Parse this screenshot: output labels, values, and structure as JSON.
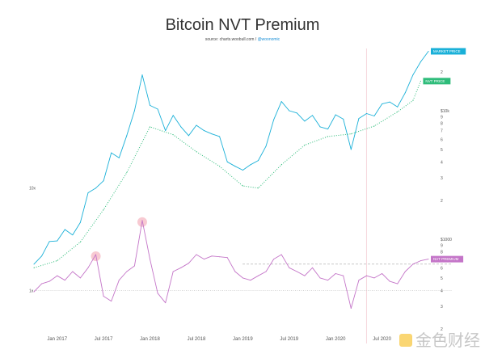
{
  "chart_data": {
    "type": "line",
    "title": "Bitcoin NVT Premium",
    "subtitle": {
      "source": "source: charts.woobull.com / ",
      "handle": "@woonomic"
    },
    "x_ticks": [
      "Jan 2017",
      "Jul 2017",
      "Jan 2018",
      "Jul 2018",
      "Jan 2019",
      "Jul 2019",
      "Jan 2020",
      "Jul 2020"
    ],
    "x_tick_dates": [
      "2017-01",
      "2017-07",
      "2018-01",
      "2018-07",
      "2019-01",
      "2019-07",
      "2020-01",
      "2020-07"
    ],
    "x_range": [
      "2016-10",
      "2021-01"
    ],
    "y_scale": "log",
    "y_right_ticks_upper": [
      {
        "v": 20000,
        "t": "2"
      },
      {
        "v": 10000,
        "t": "$10k"
      },
      {
        "v": 9000,
        "t": "9"
      },
      {
        "v": 8000,
        "t": "8"
      },
      {
        "v": 7000,
        "t": "7"
      },
      {
        "v": 6000,
        "t": "6"
      },
      {
        "v": 5000,
        "t": "5"
      },
      {
        "v": 4000,
        "t": "4"
      },
      {
        "v": 3000,
        "t": "3"
      },
      {
        "v": 2000,
        "t": "2"
      }
    ],
    "y_right_ticks_lower": [
      {
        "v": 1000,
        "t": "$1000"
      },
      {
        "v": 900,
        "t": "9"
      },
      {
        "v": 800,
        "t": "8"
      },
      {
        "v": 700,
        "t": "7"
      },
      {
        "v": 600,
        "t": "6"
      },
      {
        "v": 500,
        "t": "5"
      },
      {
        "v": 400,
        "t": "4"
      },
      {
        "v": 300,
        "t": "3"
      },
      {
        "v": 200,
        "t": "2"
      }
    ],
    "y_left_ticks": [
      {
        "t": "10x",
        "y_ref": 2500
      },
      {
        "t": "1x",
        "y_ref": 400
      }
    ],
    "reference_lines": {
      "premium_threshold": 640,
      "one_x": 400
    },
    "halving_marker": "2020-05",
    "series": [
      {
        "name": "MARKET PRICE",
        "color": "#1ab0d8",
        "style": "solid",
        "dates": [
          "2016-10",
          "2016-11",
          "2016-12",
          "2017-01",
          "2017-02",
          "2017-03",
          "2017-04",
          "2017-05",
          "2017-06",
          "2017-07",
          "2017-08",
          "2017-09",
          "2017-10",
          "2017-11",
          "2017-12",
          "2018-01",
          "2018-02",
          "2018-03",
          "2018-04",
          "2018-05",
          "2018-06",
          "2018-07",
          "2018-08",
          "2018-09",
          "2018-10",
          "2018-11",
          "2018-12",
          "2019-01",
          "2019-02",
          "2019-03",
          "2019-04",
          "2019-05",
          "2019-06",
          "2019-07",
          "2019-08",
          "2019-09",
          "2019-10",
          "2019-11",
          "2019-12",
          "2020-01",
          "2020-02",
          "2020-03",
          "2020-04",
          "2020-05",
          "2020-06",
          "2020-07",
          "2020-08",
          "2020-09",
          "2020-10",
          "2020-11",
          "2020-12",
          "2021-01"
        ],
        "values": [
          640,
          740,
          960,
          970,
          1190,
          1080,
          1350,
          2300,
          2500,
          2850,
          4700,
          4300,
          6400,
          10000,
          19000,
          11000,
          10300,
          7000,
          9200,
          7500,
          6400,
          7700,
          7000,
          6600,
          6300,
          4000,
          3700,
          3450,
          3800,
          4100,
          5300,
          8500,
          11800,
          10000,
          9600,
          8300,
          9200,
          7500,
          7200,
          9300,
          8600,
          5000,
          8700,
          9500,
          9100,
          11300,
          11700,
          10700,
          13800,
          19000,
          24000,
          29000
        ]
      },
      {
        "name": "NVT PRICE",
        "color": "#2ebc7a",
        "style": "dotted",
        "dates": [
          "2016-10",
          "2017-01",
          "2017-04",
          "2017-07",
          "2017-10",
          "2018-01",
          "2018-04",
          "2018-07",
          "2018-10",
          "2019-01",
          "2019-03",
          "2019-06",
          "2019-09",
          "2019-12",
          "2020-03",
          "2020-06",
          "2020-09",
          "2020-11",
          "2020-12"
        ],
        "values": [
          600,
          680,
          950,
          1700,
          3300,
          7500,
          6500,
          4800,
          3700,
          2600,
          2500,
          3800,
          5400,
          6300,
          6600,
          7600,
          9800,
          12000,
          17000
        ]
      },
      {
        "name": "NVT PREMIUM",
        "color": "#c475c8",
        "style": "solid",
        "dates": [
          "2016-10",
          "2016-11",
          "2016-12",
          "2017-01",
          "2017-02",
          "2017-03",
          "2017-04",
          "2017-05",
          "2017-06",
          "2017-07",
          "2017-08",
          "2017-09",
          "2017-10",
          "2017-11",
          "2017-12",
          "2018-01",
          "2018-02",
          "2018-03",
          "2018-04",
          "2018-05",
          "2018-06",
          "2018-07",
          "2018-08",
          "2018-09",
          "2018-10",
          "2018-11",
          "2018-12",
          "2019-01",
          "2019-02",
          "2019-03",
          "2019-04",
          "2019-05",
          "2019-06",
          "2019-07",
          "2019-08",
          "2019-09",
          "2019-10",
          "2019-11",
          "2019-12",
          "2020-01",
          "2020-02",
          "2020-03",
          "2020-04",
          "2020-05",
          "2020-06",
          "2020-07",
          "2020-08",
          "2020-09",
          "2020-10",
          "2020-11",
          "2020-12",
          "2021-01"
        ],
        "values": [
          390,
          450,
          470,
          520,
          480,
          560,
          500,
          600,
          760,
          360,
          330,
          480,
          560,
          620,
          1400,
          700,
          380,
          320,
          560,
          600,
          650,
          760,
          700,
          740,
          730,
          720,
          560,
          500,
          480,
          520,
          560,
          700,
          760,
          600,
          560,
          520,
          600,
          500,
          480,
          540,
          520,
          290,
          480,
          520,
          500,
          540,
          470,
          450,
          560,
          640,
          680,
          700
        ]
      }
    ],
    "highlights": [
      {
        "date": "2017-06",
        "value": 760
      },
      {
        "date": "2017-12",
        "value": 1400
      }
    ]
  },
  "watermark": "金色财经"
}
